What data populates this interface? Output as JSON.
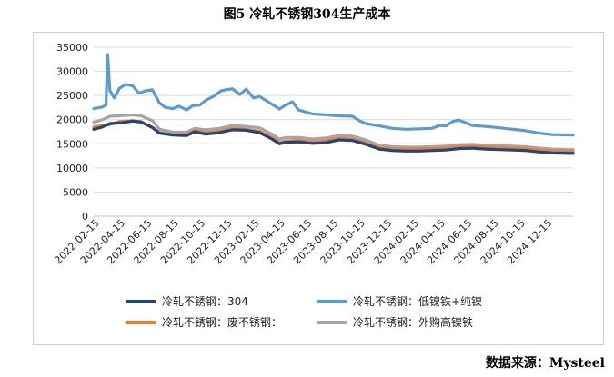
{
  "title": "图5 冷轧不锈钢304生产成本",
  "source": "数据来源：Mysteel",
  "chart_data": {
    "type": "line",
    "ylim": [
      0,
      35000
    ],
    "yticks": [
      0,
      5000,
      10000,
      15000,
      20000,
      25000,
      30000,
      35000
    ],
    "xlim": [
      "2022-02-01",
      "2025-01-31"
    ],
    "xticks": [
      "2022-02-15",
      "2022-04-15",
      "2022-06-15",
      "2022-08-15",
      "2022-10-15",
      "2022-12-15",
      "2023-02-15",
      "2023-04-15",
      "2023-06-15",
      "2023-08-15",
      "2023-10-15",
      "2023-12-15",
      "2024-02-15",
      "2024-04-15",
      "2024-06-15",
      "2024-08-15",
      "2024-10-15",
      "2024-12-15"
    ],
    "grid": true,
    "legend_position": "bottom",
    "series": [
      {
        "name": "冷轧不锈钢：304",
        "color": "#264478",
        "points": [
          [
            "2022-02-01",
            18000
          ],
          [
            "2022-02-15",
            18300
          ],
          [
            "2022-03-01",
            18800
          ],
          [
            "2022-03-10",
            19200
          ],
          [
            "2022-04-01",
            19300
          ],
          [
            "2022-05-01",
            19700
          ],
          [
            "2022-05-20",
            19500
          ],
          [
            "2022-06-15",
            18400
          ],
          [
            "2022-07-01",
            17200
          ],
          [
            "2022-08-01",
            16800
          ],
          [
            "2022-09-01",
            16700
          ],
          [
            "2022-09-20",
            17500
          ],
          [
            "2022-10-15",
            17000
          ],
          [
            "2022-11-15",
            17300
          ],
          [
            "2022-12-15",
            17900
          ],
          [
            "2023-01-15",
            17800
          ],
          [
            "2023-02-15",
            17300
          ],
          [
            "2023-03-15",
            16000
          ],
          [
            "2023-04-01",
            15000
          ],
          [
            "2023-04-15",
            15300
          ],
          [
            "2023-05-15",
            15400
          ],
          [
            "2023-06-15",
            15100
          ],
          [
            "2023-07-15",
            15200
          ],
          [
            "2023-08-15",
            15800
          ],
          [
            "2023-09-15",
            15700
          ],
          [
            "2023-10-15",
            14900
          ],
          [
            "2023-11-15",
            13900
          ],
          [
            "2023-12-15",
            13600
          ],
          [
            "2024-01-15",
            13500
          ],
          [
            "2024-02-15",
            13500
          ],
          [
            "2024-03-15",
            13600
          ],
          [
            "2024-04-15",
            13700
          ],
          [
            "2024-05-15",
            14000
          ],
          [
            "2024-06-15",
            14100
          ],
          [
            "2024-07-15",
            13900
          ],
          [
            "2024-08-15",
            13800
          ],
          [
            "2024-09-15",
            13700
          ],
          [
            "2024-10-15",
            13600
          ],
          [
            "2024-11-15",
            13300
          ],
          [
            "2024-12-15",
            13100
          ],
          [
            "2025-01-31",
            13000
          ]
        ]
      },
      {
        "name": "冷轧不锈钢：低镍铁+纯镍",
        "color": "#5b9bd5",
        "points": [
          [
            "2022-02-01",
            22300
          ],
          [
            "2022-02-20",
            22600
          ],
          [
            "2022-03-01",
            23000
          ],
          [
            "2022-03-05",
            33500
          ],
          [
            "2022-03-10",
            26000
          ],
          [
            "2022-03-20",
            24500
          ],
          [
            "2022-04-01",
            26500
          ],
          [
            "2022-04-15",
            27300
          ],
          [
            "2022-05-01",
            27000
          ],
          [
            "2022-05-15",
            25500
          ],
          [
            "2022-06-01",
            26000
          ],
          [
            "2022-06-15",
            26200
          ],
          [
            "2022-07-01",
            23500
          ],
          [
            "2022-07-15",
            22500
          ],
          [
            "2022-08-01",
            22300
          ],
          [
            "2022-08-15",
            22800
          ],
          [
            "2022-09-01",
            22000
          ],
          [
            "2022-09-15",
            22900
          ],
          [
            "2022-10-01",
            23000
          ],
          [
            "2022-10-15",
            24000
          ],
          [
            "2022-11-01",
            24800
          ],
          [
            "2022-11-20",
            26000
          ],
          [
            "2022-12-15",
            26400
          ],
          [
            "2023-01-01",
            25200
          ],
          [
            "2023-01-15",
            26300
          ],
          [
            "2023-02-01",
            24500
          ],
          [
            "2023-02-15",
            24800
          ],
          [
            "2023-03-15",
            23200
          ],
          [
            "2023-04-01",
            22200
          ],
          [
            "2023-04-15",
            23000
          ],
          [
            "2023-05-01",
            23700
          ],
          [
            "2023-05-15",
            22000
          ],
          [
            "2023-06-15",
            21200
          ],
          [
            "2023-07-15",
            21000
          ],
          [
            "2023-08-15",
            20800
          ],
          [
            "2023-09-15",
            20700
          ],
          [
            "2023-10-01",
            19800
          ],
          [
            "2023-10-15",
            19200
          ],
          [
            "2023-11-15",
            18700
          ],
          [
            "2023-12-15",
            18200
          ],
          [
            "2024-01-15",
            18000
          ],
          [
            "2024-02-15",
            18100
          ],
          [
            "2024-03-15",
            18200
          ],
          [
            "2024-04-01",
            18800
          ],
          [
            "2024-04-15",
            18700
          ],
          [
            "2024-05-01",
            19600
          ],
          [
            "2024-05-15",
            19900
          ],
          [
            "2024-06-01",
            19300
          ],
          [
            "2024-06-15",
            18800
          ],
          [
            "2024-07-15",
            18600
          ],
          [
            "2024-08-15",
            18300
          ],
          [
            "2024-09-15",
            18000
          ],
          [
            "2024-10-15",
            17700
          ],
          [
            "2024-11-15",
            17200
          ],
          [
            "2024-12-15",
            16900
          ],
          [
            "2025-01-31",
            16800
          ]
        ]
      },
      {
        "name": "冷轧不锈钢：废不锈钢：",
        "color": "#ed7d31",
        "points": [
          [
            "2022-02-01",
            18500
          ],
          [
            "2022-02-15",
            18700
          ],
          [
            "2022-03-01",
            18900
          ],
          [
            "2022-03-10",
            19000
          ],
          [
            "2022-04-01",
            19600
          ],
          [
            "2022-05-01",
            19800
          ],
          [
            "2022-05-20",
            19600
          ],
          [
            "2022-06-15",
            18300
          ],
          [
            "2022-07-01",
            17300
          ],
          [
            "2022-08-01",
            16900
          ],
          [
            "2022-09-01",
            16900
          ],
          [
            "2022-09-20",
            17700
          ],
          [
            "2022-10-15",
            17300
          ],
          [
            "2022-11-15",
            17600
          ],
          [
            "2022-12-15",
            18200
          ],
          [
            "2023-01-15",
            18000
          ],
          [
            "2023-02-15",
            17600
          ],
          [
            "2023-03-15",
            16300
          ],
          [
            "2023-04-01",
            15300
          ],
          [
            "2023-04-15",
            15600
          ],
          [
            "2023-05-15",
            15700
          ],
          [
            "2023-06-15",
            15400
          ],
          [
            "2023-07-15",
            15600
          ],
          [
            "2023-08-15",
            16100
          ],
          [
            "2023-09-15",
            16000
          ],
          [
            "2023-10-15",
            15200
          ],
          [
            "2023-11-15",
            14200
          ],
          [
            "2023-12-15",
            13900
          ],
          [
            "2024-01-15",
            13900
          ],
          [
            "2024-02-15",
            13900
          ],
          [
            "2024-03-15",
            14000
          ],
          [
            "2024-04-15",
            14100
          ],
          [
            "2024-05-15",
            14400
          ],
          [
            "2024-06-15",
            14500
          ],
          [
            "2024-07-15",
            14300
          ],
          [
            "2024-08-15",
            14200
          ],
          [
            "2024-09-15",
            14100
          ],
          [
            "2024-10-15",
            14000
          ],
          [
            "2024-11-15",
            13700
          ],
          [
            "2024-12-15",
            13500
          ],
          [
            "2025-01-31",
            13400
          ]
        ]
      },
      {
        "name": "冷轧不锈钢：外购高镍铁",
        "color": "#a5a5a5",
        "points": [
          [
            "2022-02-01",
            19500
          ],
          [
            "2022-02-15",
            19800
          ],
          [
            "2022-03-01",
            20300
          ],
          [
            "2022-03-10",
            20700
          ],
          [
            "2022-04-01",
            20800
          ],
          [
            "2022-05-01",
            21000
          ],
          [
            "2022-05-20",
            20800
          ],
          [
            "2022-06-15",
            19800
          ],
          [
            "2022-07-01",
            18000
          ],
          [
            "2022-08-01",
            17400
          ],
          [
            "2022-09-01",
            17400
          ],
          [
            "2022-09-20",
            18200
          ],
          [
            "2022-10-15",
            17900
          ],
          [
            "2022-11-15",
            18200
          ],
          [
            "2022-12-15",
            18800
          ],
          [
            "2023-01-15",
            18600
          ],
          [
            "2023-02-15",
            18300
          ],
          [
            "2023-03-15",
            17000
          ],
          [
            "2023-04-01",
            16000
          ],
          [
            "2023-04-15",
            16300
          ],
          [
            "2023-05-15",
            16300
          ],
          [
            "2023-06-15",
            16000
          ],
          [
            "2023-07-15",
            16200
          ],
          [
            "2023-08-15",
            16700
          ],
          [
            "2023-09-15",
            16600
          ],
          [
            "2023-10-15",
            15800
          ],
          [
            "2023-11-15",
            14700
          ],
          [
            "2023-12-15",
            14400
          ],
          [
            "2024-01-15",
            14300
          ],
          [
            "2024-02-15",
            14300
          ],
          [
            "2024-03-15",
            14400
          ],
          [
            "2024-04-15",
            14500
          ],
          [
            "2024-05-15",
            14800
          ],
          [
            "2024-06-15",
            14900
          ],
          [
            "2024-07-15",
            14700
          ],
          [
            "2024-08-15",
            14600
          ],
          [
            "2024-09-15",
            14500
          ],
          [
            "2024-10-15",
            14400
          ],
          [
            "2024-11-15",
            14100
          ],
          [
            "2024-12-15",
            13900
          ],
          [
            "2025-01-31",
            13800
          ]
        ]
      }
    ]
  }
}
